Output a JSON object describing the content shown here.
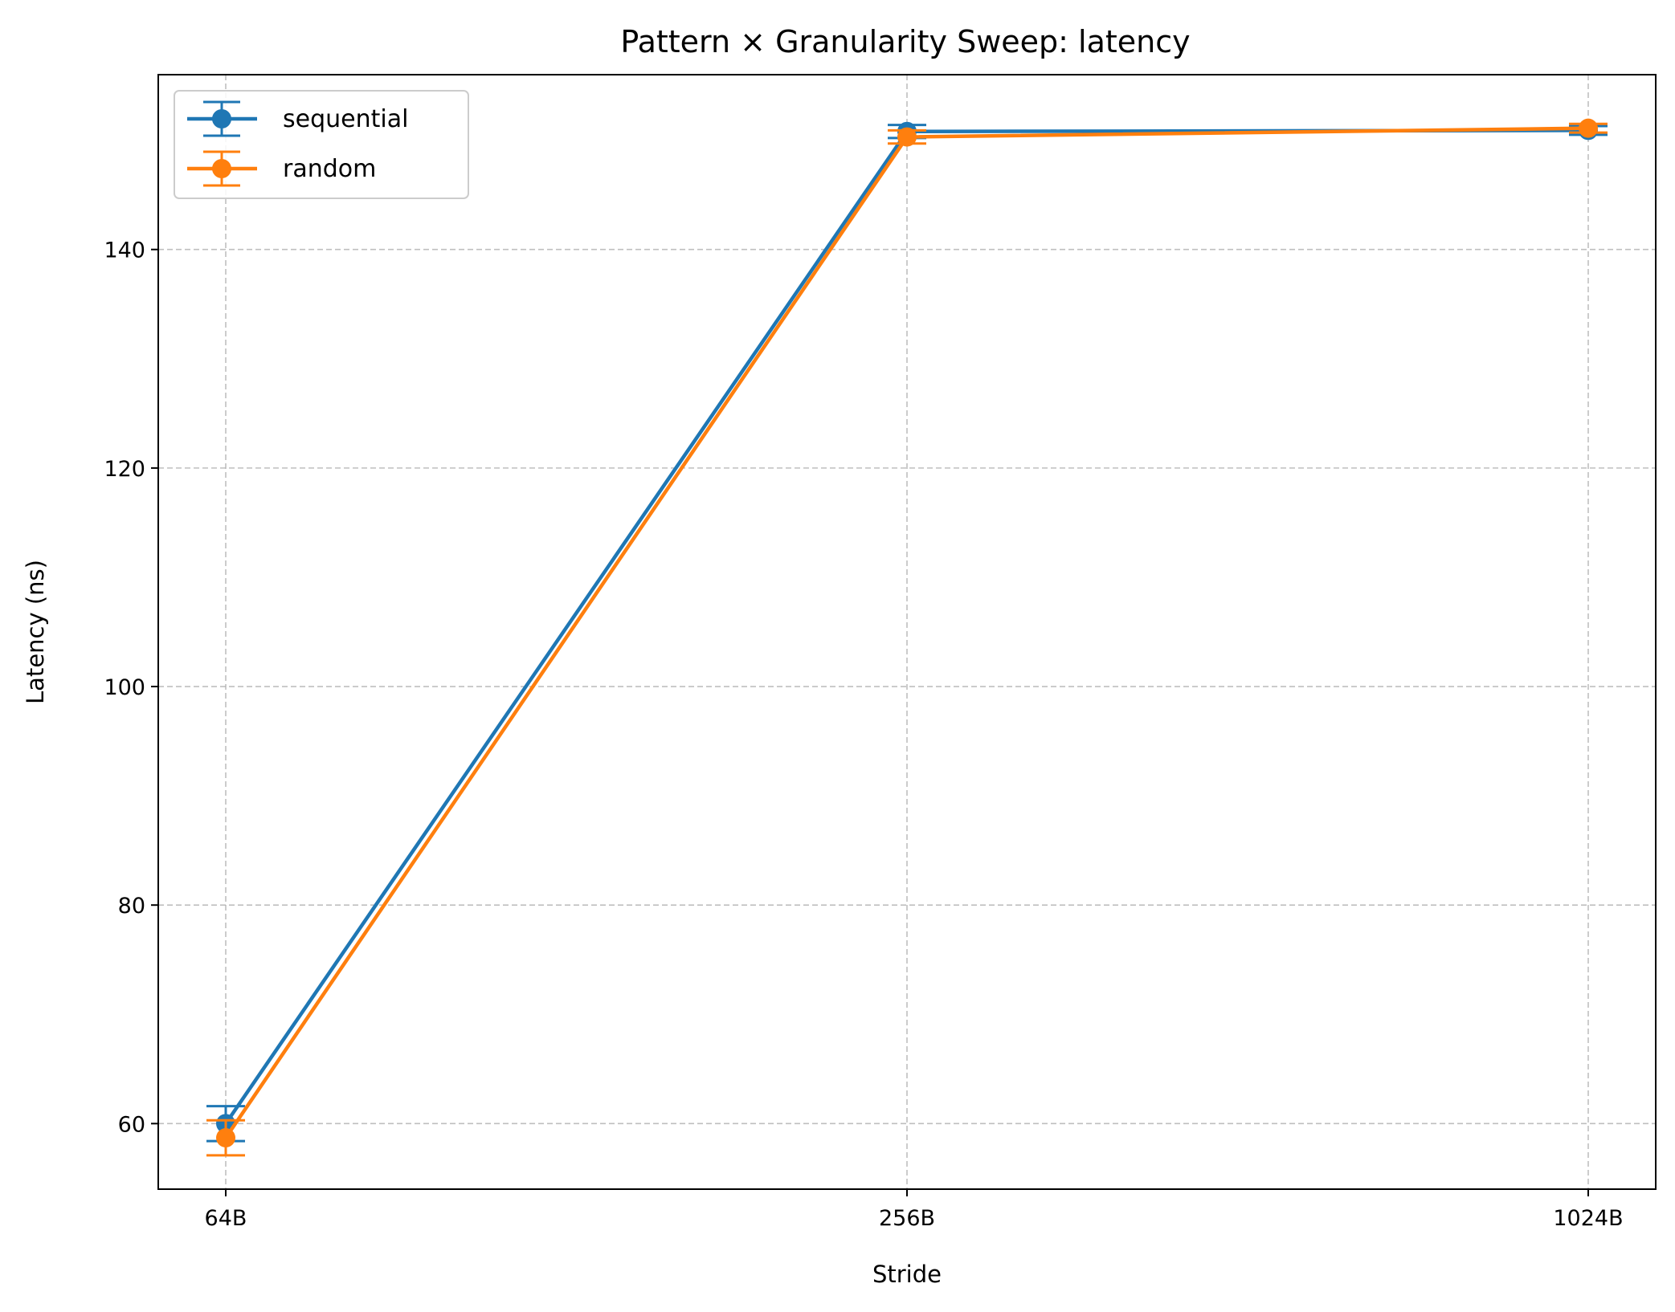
{
  "chart_data": {
    "type": "line",
    "title": "Pattern × Granularity Sweep: latency",
    "xlabel": "Stride",
    "ylabel": "Latency (ns)",
    "categories": [
      "64B",
      "256B",
      "1024B"
    ],
    "ylim": [
      54,
      156
    ],
    "yticks": [
      60,
      80,
      100,
      120,
      140
    ],
    "grid": true,
    "grid_style": "dashed",
    "legend_position": "top-left",
    "error_bars": true,
    "series": [
      {
        "name": "sequential",
        "color": "#1f77b4",
        "values": [
          60.0,
          150.8,
          150.9
        ],
        "errors": [
          1.6,
          0.6,
          0.4
        ]
      },
      {
        "name": "random",
        "color": "#ff7f0e",
        "values": [
          58.7,
          150.3,
          151.1
        ],
        "errors": [
          1.6,
          0.6,
          0.4
        ]
      }
    ]
  }
}
